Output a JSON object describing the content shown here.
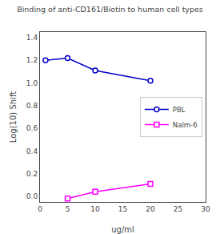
{
  "chart_data": {
    "type": "line",
    "title": "Binding of anti-CD161/Biotin to human cell types",
    "x_label": "ug/ml",
    "y_label": "Log(10) Shift",
    "series": [
      {
        "name": "PBL",
        "color": "#0000cc",
        "marker": "circle",
        "x": [
          1,
          5,
          10,
          20
        ],
        "values": [
          1.2,
          1.22,
          1.11,
          1.02
        ]
      },
      {
        "name": "Nalm-6",
        "color": "#ff00ff",
        "marker": "square",
        "x": [
          5,
          10,
          20
        ],
        "values": [
          -0.02,
          0.04,
          0.11
        ]
      }
    ],
    "xlim": [
      0,
      30
    ],
    "xticks": [
      0,
      5,
      10,
      15,
      20,
      25,
      30
    ],
    "ylim": [
      -0.05,
      1.45
    ],
    "yticks": [
      {
        "value": 0.0,
        "label": "0.0"
      },
      0.2,
      0.4,
      0.6,
      0.8,
      {
        "value": 1.0,
        "label": "1.0"
      },
      1.2,
      1.4
    ],
    "grid": false,
    "legend": "center right"
  }
}
